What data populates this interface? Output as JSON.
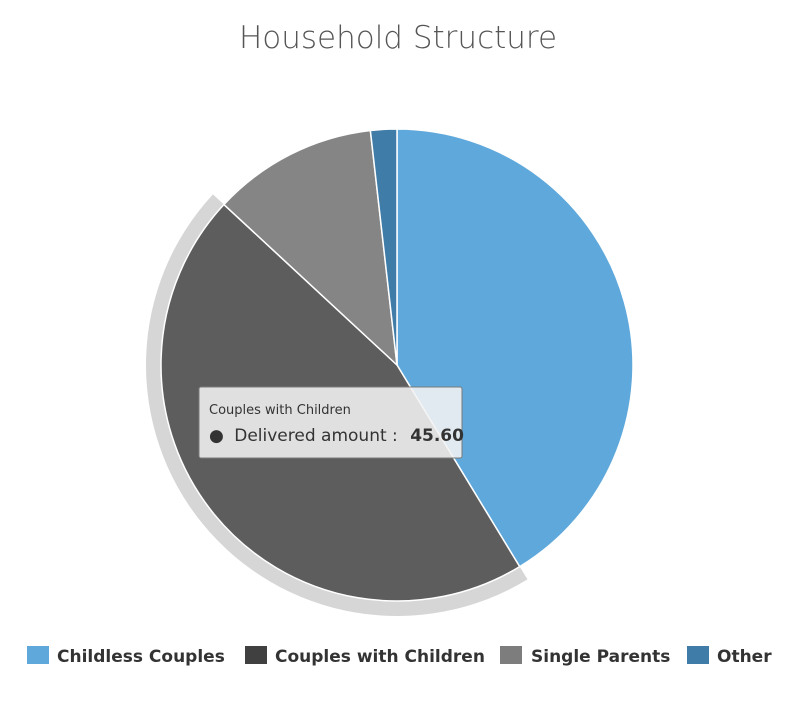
{
  "chart_data": {
    "type": "pie",
    "title": "Household Structure",
    "categories": [
      "Childless Couples",
      "Couples with Children",
      "Single Parents",
      "Other"
    ],
    "values": [
      41.3,
      45.6,
      11.3,
      1.8
    ],
    "colors": [
      "#5fa8dc",
      "#5d5d5d",
      "#858585",
      "#3f7ca8"
    ],
    "legend_colors": [
      "#5fa8dc",
      "#404040",
      "#7d7d7d",
      "#3f7ca8"
    ],
    "legend_position": "bottom",
    "hovered_slice": "Couples with Children",
    "tooltip": {
      "series_name": "Couples with Children",
      "metric_label": "Delivered amount",
      "value_text": "45.60"
    }
  }
}
